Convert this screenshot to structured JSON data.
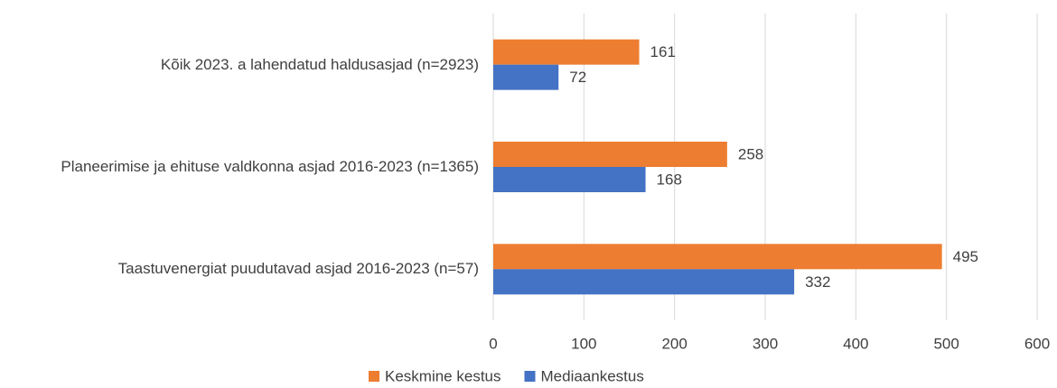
{
  "chart_data": {
    "type": "hbar",
    "categories": [
      "Kõik 2023. a lahendatud haldusasjad (n=2923)",
      "Planeerimise ja ehituse valdkonna asjad 2016-2023 (n=1365)",
      "Taastuvenergiat puudutavad asjad 2016-2023 (n=57)"
    ],
    "series": [
      {
        "name": "Keskmine kestus",
        "color": "#ed7d31",
        "values": [
          161,
          258,
          495
        ]
      },
      {
        "name": "Mediaankestus",
        "color": "#4472c4",
        "values": [
          72,
          168,
          332
        ]
      }
    ],
    "xlim": [
      0,
      600
    ],
    "xticks": [
      0,
      100,
      200,
      300,
      400,
      500,
      600
    ],
    "grid": true,
    "legend": "bottom"
  }
}
